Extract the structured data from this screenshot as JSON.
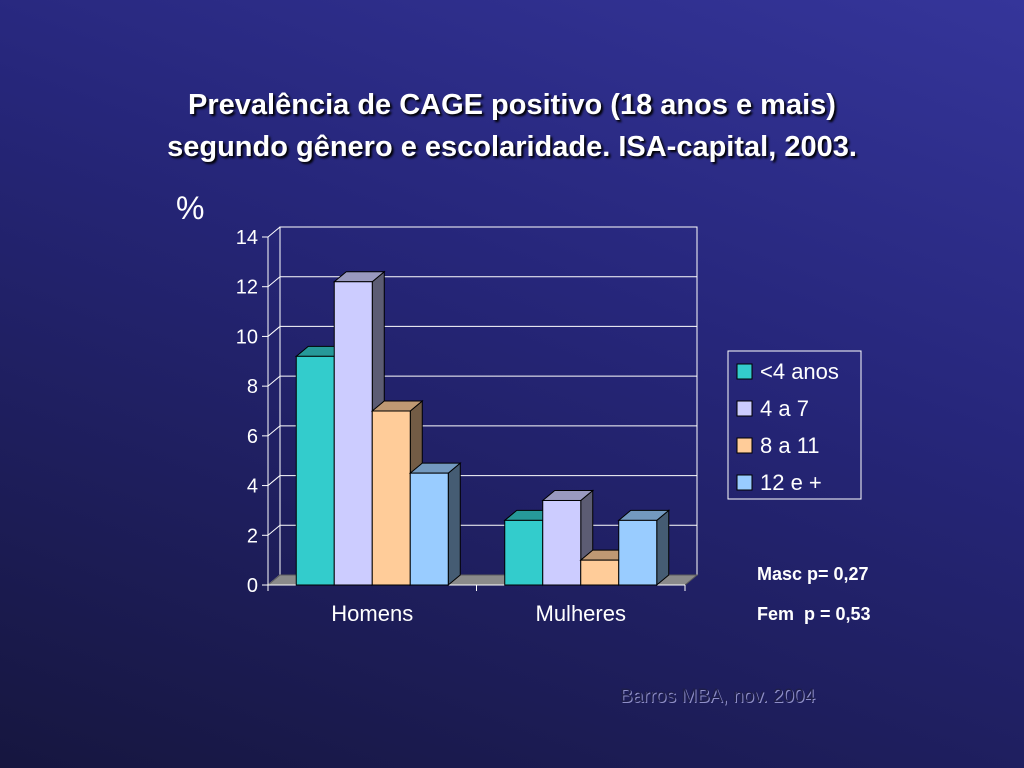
{
  "title": {
    "line1": "Prevalência de CAGE positivo (18 anos e mais)",
    "line2": "segundo gênero e escolaridade. ISA-capital, 2003."
  },
  "chart_data": {
    "type": "bar",
    "ylabel": "%",
    "ylim": [
      0,
      14
    ],
    "yticks": [
      0,
      2,
      4,
      6,
      8,
      10,
      12,
      14
    ],
    "categories": [
      "Homens",
      "Mulheres"
    ],
    "series": [
      {
        "name": "<4 anos",
        "values": [
          9.2,
          2.6
        ],
        "color": "#33cccc"
      },
      {
        "name": "4 a 7",
        "values": [
          12.2,
          3.4
        ],
        "color": "#ccccff"
      },
      {
        "name": "8 a 11",
        "values": [
          7.0,
          1.0
        ],
        "color": "#ffcc99"
      },
      {
        "name": "12 e +",
        "values": [
          4.5,
          2.6
        ],
        "color": "#99ccff"
      }
    ],
    "grid": true,
    "legend": "right",
    "style": "3d-clustered-column"
  },
  "notes": {
    "masc": "Masc p= 0,27",
    "fem": "Fem  p = 0,53"
  },
  "credit": "Barros MBA, nov. 2004"
}
